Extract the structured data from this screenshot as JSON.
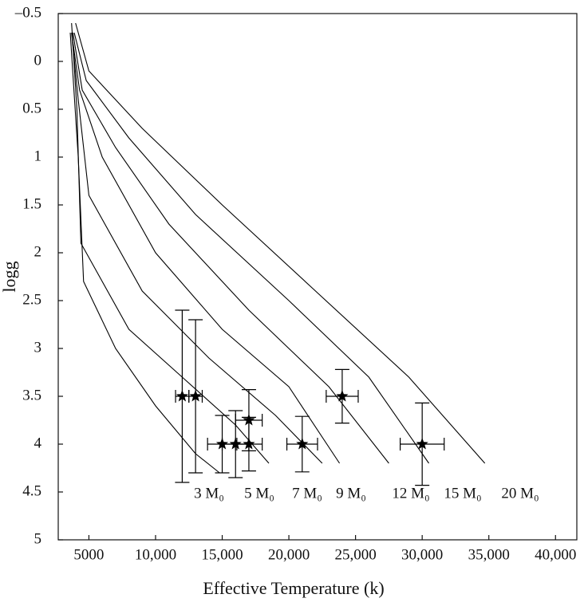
{
  "chart_data": {
    "type": "scatter",
    "x_label": "Effective Temperature (k)",
    "y_label": "logg",
    "xlim": [
      2700,
      41600
    ],
    "xticks": [
      {
        "value": 5000,
        "label": "5000"
      },
      {
        "value": 10000,
        "label": "10,000"
      },
      {
        "value": 15000,
        "label": "15,000"
      },
      {
        "value": 20000,
        "label": "20,000"
      },
      {
        "value": 25000,
        "label": "25,000"
      },
      {
        "value": 30000,
        "label": "30,000"
      },
      {
        "value": 35000,
        "label": "35,000"
      },
      {
        "value": 40000,
        "label": "40,000"
      }
    ],
    "ylim": [
      -0.5,
      5
    ],
    "y_inverted": true,
    "yticks": [
      {
        "value": -0.5,
        "label": "–0.5"
      },
      0,
      0.5,
      1,
      1.5,
      2,
      2.5,
      3,
      3.5,
      4,
      4.5,
      5
    ],
    "series": [
      {
        "color": "#000000",
        "x": [
          12000,
          13000,
          15000,
          16000,
          17000,
          17000,
          21000,
          24000,
          30000
        ],
        "values": [
          3.5,
          3.5,
          4.0,
          4.0,
          3.75,
          4.0,
          4.0,
          3.5,
          4.0
        ],
        "xerr": [
          500,
          500,
          1100,
          1000,
          1000,
          1000,
          1150,
          1200,
          1650
        ],
        "yerr": [
          0.9,
          0.8,
          0.3,
          0.35,
          0.32,
          0.28,
          0.29,
          0.28,
          0.43
        ]
      }
    ],
    "tracks": [
      {
        "name": "3 M₀",
        "color": "#000000",
        "x": [
          3600,
          4200,
          4600,
          7000,
          10000,
          13000,
          14800
        ],
        "values": [
          -0.3,
          1.0,
          2.3,
          3.0,
          3.6,
          4.1,
          4.3
        ]
      },
      {
        "name": "5 M₀",
        "color": "#000000",
        "x": [
          3700,
          4100,
          4400,
          8000,
          12000,
          16000,
          18500
        ],
        "values": [
          -0.4,
          0.5,
          1.9,
          2.8,
          3.3,
          3.8,
          4.2
        ]
      },
      {
        "name": "7 M₀",
        "color": "#000000",
        "x": [
          3700,
          4200,
          5000,
          9000,
          14000,
          19000,
          22500
        ],
        "values": [
          -0.3,
          0.4,
          1.4,
          2.4,
          3.1,
          3.7,
          4.2
        ]
      },
      {
        "name": "9 M₀",
        "color": "#000000",
        "x": [
          3800,
          4300,
          6000,
          10000,
          15000,
          20000,
          23800
        ],
        "values": [
          -0.2,
          0.3,
          1.0,
          2.0,
          2.8,
          3.4,
          4.2
        ]
      },
      {
        "name": "12 M₀",
        "color": "#000000",
        "x": [
          3800,
          4500,
          7000,
          11000,
          17000,
          23000,
          27500
        ],
        "values": [
          -0.3,
          0.3,
          0.9,
          1.7,
          2.6,
          3.4,
          4.2
        ]
      },
      {
        "name": "15 M₀",
        "color": "#000000",
        "x": [
          3900,
          4800,
          8000,
          13000,
          20000,
          26000,
          30500
        ],
        "values": [
          -0.3,
          0.2,
          0.8,
          1.6,
          2.5,
          3.3,
          4.2
        ]
      },
      {
        "name": "20 M₀",
        "color": "#000000",
        "x": [
          4000,
          5000,
          9000,
          15000,
          22000,
          29000,
          34700
        ],
        "values": [
          -0.4,
          0.1,
          0.7,
          1.5,
          2.4,
          3.3,
          4.2
        ]
      }
    ]
  }
}
